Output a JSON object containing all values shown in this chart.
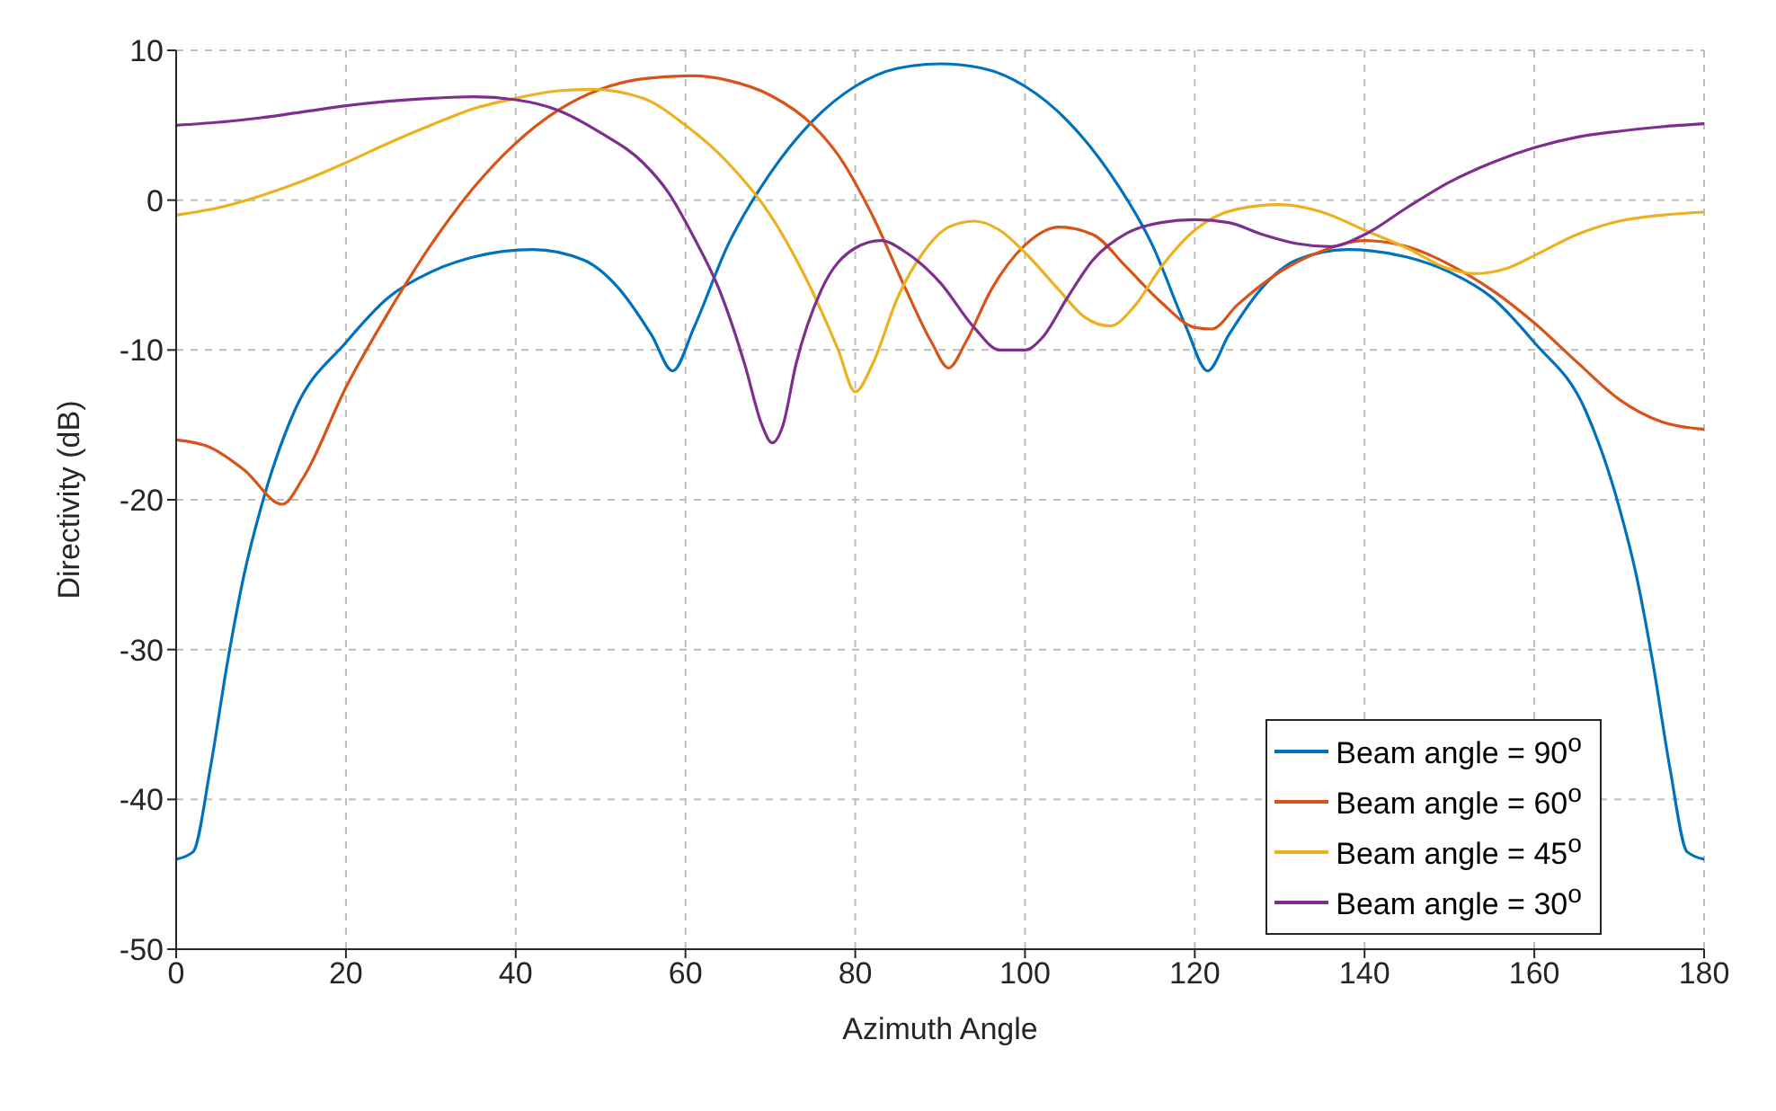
{
  "chart_data": {
    "type": "line",
    "xlabel": "Azimuth Angle",
    "ylabel": "Directivity (dB)",
    "xlim": [
      0,
      180
    ],
    "xticks": [
      0,
      20,
      40,
      60,
      80,
      100,
      120,
      140,
      160,
      180
    ],
    "ylim": [
      -50,
      10
    ],
    "yticks": [
      -50,
      -40,
      -30,
      -20,
      -10,
      0,
      10
    ],
    "grid": true,
    "legend": "bottom right",
    "marker": "none",
    "line_style": "solid",
    "series": [
      {
        "name": "Beam angle = 90$^{o}$",
        "color": "#0072bd",
        "x": [
          0,
          2,
          4,
          6,
          8,
          10,
          14,
          20,
          25,
          30,
          35,
          42,
          48,
          52,
          56,
          58.5,
          61,
          65,
          70,
          75,
          80,
          85,
          90,
          95,
          100,
          105,
          110,
          115,
          119,
          121.5,
          124,
          128,
          132,
          138,
          145,
          150,
          155,
          160,
          166,
          170,
          172,
          174,
          176,
          178,
          180
        ],
        "values": [
          -44,
          -43.5,
          -38,
          -31,
          -25,
          -20.5,
          -14,
          -9.5,
          -6.5,
          -4.8,
          -3.8,
          -3.3,
          -4,
          -5.8,
          -9,
          -11.4,
          -8.5,
          -3,
          1.8,
          5.3,
          7.6,
          8.8,
          9.1,
          8.8,
          7.6,
          5.3,
          1.8,
          -3,
          -8.5,
          -11.4,
          -9,
          -5.8,
          -4,
          -3.3,
          -3.8,
          -4.8,
          -6.5,
          -9.5,
          -14,
          -20.5,
          -25,
          -31,
          -38,
          -43.5,
          -44
        ]
      },
      {
        "name": "Beam angle = 60$^{o}$",
        "color": "#d95319",
        "x": [
          0,
          4,
          8,
          12.5,
          15,
          20,
          25,
          30,
          35,
          40,
          45,
          50,
          55,
          61,
          65,
          70,
          75,
          78,
          82,
          86,
          89,
          91,
          93,
          96,
          100,
          104,
          108,
          112,
          116,
          120,
          122,
          125,
          130,
          135,
          140,
          145,
          150,
          155,
          160,
          165,
          170,
          175,
          180
        ],
        "values": [
          -16,
          -16.5,
          -18,
          -20.3,
          -18.5,
          -12.5,
          -7.5,
          -3,
          0.8,
          3.8,
          6,
          7.4,
          8.1,
          8.3,
          8,
          7,
          5,
          3,
          -1,
          -6,
          -9.5,
          -11.2,
          -9.5,
          -6,
          -3,
          -1.8,
          -2.3,
          -4.5,
          -6.8,
          -8.5,
          -8.6,
          -7,
          -4.8,
          -3.4,
          -2.7,
          -3.1,
          -4.3,
          -6,
          -8.2,
          -10.8,
          -13.3,
          -14.8,
          -15.3
        ]
      },
      {
        "name": "Beam angle = 45$^{o}$",
        "color": "#edb120",
        "x": [
          0,
          5,
          10,
          15,
          20,
          25,
          30,
          35,
          40,
          45,
          49,
          55,
          60,
          65,
          70,
          74,
          78,
          80,
          82,
          85,
          88,
          91,
          94,
          97,
          100,
          104,
          107,
          110,
          113,
          116,
          120,
          125,
          130,
          135,
          140,
          145,
          150,
          153,
          157,
          160,
          165,
          170,
          175,
          180
        ],
        "values": [
          -1,
          -0.5,
          0.3,
          1.3,
          2.5,
          3.8,
          5,
          6.1,
          6.8,
          7.3,
          7.4,
          6.8,
          5,
          2.5,
          -1,
          -5,
          -10,
          -12.8,
          -11,
          -6.5,
          -3.5,
          -1.8,
          -1.4,
          -2,
          -3.5,
          -6,
          -7.8,
          -8.4,
          -7,
          -4.5,
          -2,
          -0.6,
          -0.3,
          -0.8,
          -2,
          -3.2,
          -4.6,
          -4.9,
          -4.5,
          -3.7,
          -2.3,
          -1.4,
          -1,
          -0.8
        ]
      },
      {
        "name": "Beam angle = 30$^{o}$",
        "color": "#7e2f8e",
        "x": [
          0,
          5,
          10,
          15,
          20,
          25,
          30,
          35,
          40,
          45,
          50,
          55,
          58,
          61,
          64,
          67,
          69,
          70.2,
          71.5,
          73,
          76,
          80,
          83,
          86,
          90,
          94,
          97,
          100,
          102,
          105,
          108,
          112,
          116,
          120,
          124,
          128,
          132,
          136,
          140,
          145,
          150,
          155,
          160,
          165,
          170,
          175,
          180
        ],
        "values": [
          5,
          5.2,
          5.5,
          5.9,
          6.3,
          6.6,
          6.8,
          6.9,
          6.7,
          6,
          4.5,
          2.5,
          0.5,
          -2.5,
          -6,
          -11,
          -15,
          -16.2,
          -15,
          -11,
          -6,
          -3.2,
          -2.7,
          -3.5,
          -5.5,
          -8.5,
          -10,
          -10,
          -9.2,
          -6.5,
          -4,
          -2.2,
          -1.5,
          -1.3,
          -1.5,
          -2.3,
          -2.9,
          -3.1,
          -2.3,
          -0.5,
          1.2,
          2.5,
          3.5,
          4.2,
          4.6,
          4.9,
          5.1
        ]
      }
    ]
  }
}
